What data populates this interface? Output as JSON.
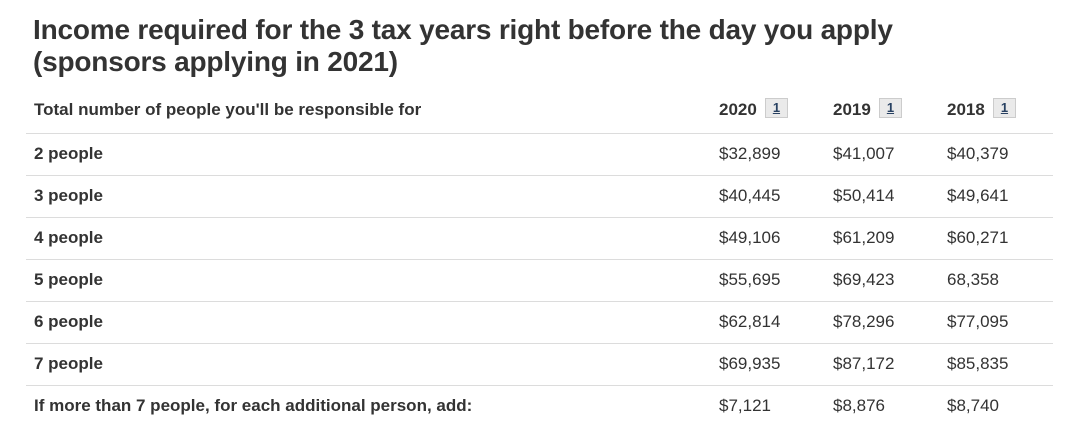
{
  "page": {
    "title": "Income required for the 3 tax years right before the day you apply (sponsors applying in 2021)"
  },
  "table": {
    "header": {
      "label_column": "Total number of people you'll be responsible for",
      "year_columns": [
        {
          "year": "2020",
          "footnote": "1"
        },
        {
          "year": "2019",
          "footnote": "1"
        },
        {
          "year": "2018",
          "footnote": "1"
        }
      ]
    },
    "rows": [
      {
        "label": "2 people",
        "values": [
          "$32,899",
          "$41,007",
          "$40,379"
        ]
      },
      {
        "label": "3 people",
        "values": [
          "$40,445",
          "$50,414",
          "$49,641"
        ]
      },
      {
        "label": "4 people",
        "values": [
          "$49,106",
          "$61,209",
          "$60,271"
        ]
      },
      {
        "label": "5 people",
        "values": [
          "$55,695",
          "$69,423",
          "68,358"
        ]
      },
      {
        "label": "6 people",
        "values": [
          "$62,814",
          "$78,296",
          "$77,095"
        ]
      },
      {
        "label": "7 people",
        "values": [
          "$69,935",
          "$87,172",
          "$85,835"
        ]
      },
      {
        "label": "If more than 7 people, for each additional person, add:",
        "values": [
          "$7,121",
          "$8,876",
          "$8,740"
        ]
      }
    ]
  },
  "colors": {
    "text": "#333333",
    "divider": "#dcdcdc",
    "footnote_link_text": "#284162",
    "footnote_link_bg": "#eaeaea",
    "footnote_link_border": "#cccccc"
  }
}
